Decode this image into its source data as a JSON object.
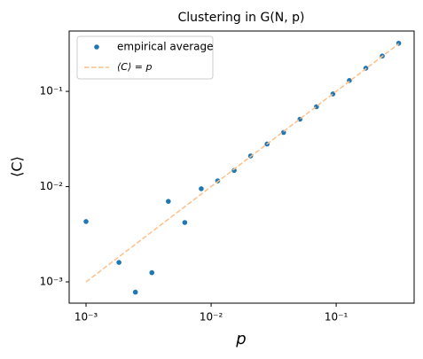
{
  "chart_data": {
    "type": "scatter",
    "title": "Clustering in G(N, p)",
    "xlabel": "p",
    "ylabel": "⟨C⟩",
    "x": [
      0.001,
      0.001354,
      0.001833,
      0.002482,
      0.00336,
      0.00455,
      0.00616,
      0.00834,
      0.01129,
      0.01529,
      0.0207,
      0.02803,
      0.03795,
      0.05138,
      0.06957,
      0.09419,
      0.1275,
      0.1726,
      0.2336,
      0.3162
    ],
    "series": [
      {
        "name": "empirical average",
        "color": "#1f77b4",
        "style": "marker",
        "values": [
          0.0043,
          null,
          0.0016,
          0.00078,
          0.00125,
          0.007,
          0.0042,
          0.0095,
          0.0115,
          0.0148,
          0.021,
          0.028,
          0.037,
          0.051,
          0.069,
          0.094,
          0.13,
          0.175,
          0.235,
          0.32
        ]
      },
      {
        "name": "⟨C⟩ = p",
        "color": "#ffbf86",
        "style": "dashed",
        "values": [
          0.001,
          0.001354,
          0.001833,
          0.002482,
          0.00336,
          0.00455,
          0.00616,
          0.00834,
          0.01129,
          0.01529,
          0.0207,
          0.02803,
          0.03795,
          0.05138,
          0.06957,
          0.09419,
          0.1275,
          0.1726,
          0.2336,
          0.3162
        ]
      }
    ],
    "xlim": [
      0.000733,
      0.42
    ],
    "ylim": [
      0.000598,
      0.43
    ],
    "xticks": [
      {
        "value": 0.001,
        "label": "10⁻³"
      },
      {
        "value": 0.01,
        "label": "10⁻²"
      },
      {
        "value": 0.1,
        "label": "10⁻¹"
      }
    ],
    "yticks": [
      {
        "value": 0.001,
        "label": "10⁻³"
      },
      {
        "value": 0.01,
        "label": "10⁻²"
      },
      {
        "value": 0.1,
        "label": "10⁻¹"
      }
    ],
    "xscale": "log",
    "yscale": "log",
    "legend": "upper left",
    "grid": false
  }
}
